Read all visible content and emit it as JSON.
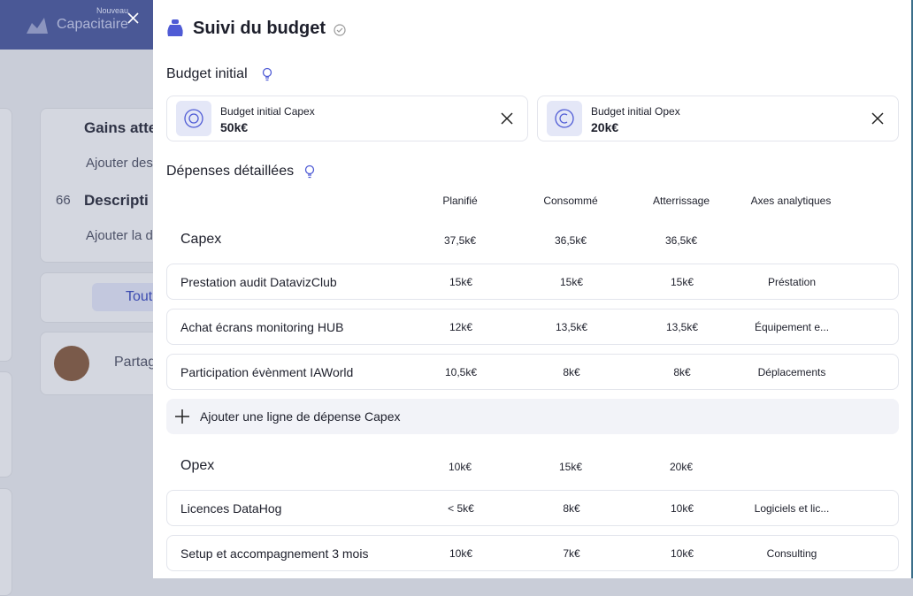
{
  "background": {
    "badge": "Nouveau",
    "app_name": "Capacitaire",
    "texts": [
      "Gains atte",
      "Ajouter des",
      "66",
      "Descripti",
      "Ajouter la d",
      "Tout",
      "Partag"
    ]
  },
  "panel": {
    "title": "Suivi du budget",
    "initial_budget": {
      "heading": "Budget initial",
      "cards": [
        {
          "label": "Budget initial Capex",
          "amount": "50k€"
        },
        {
          "label": "Budget initial Opex",
          "amount": "20k€"
        }
      ]
    },
    "details": {
      "heading": "Dépenses détaillées",
      "columns": [
        "Planifié",
        "Consommé",
        "Atterrissage",
        "Axes analytiques"
      ],
      "groups": [
        {
          "name": "Capex",
          "totals": [
            "37,5k€",
            "36,5k€",
            "36,5k€"
          ],
          "rows": [
            [
              "Prestation audit DatavizClub",
              "15k€",
              "15k€",
              "15k€",
              "Préstation"
            ],
            [
              "Achat écrans monitoring HUB",
              "12k€",
              "13,5k€",
              "13,5k€",
              "Équipement e..."
            ],
            [
              "Participation évènment IAWorld",
              "10,5k€",
              "8k€",
              "8k€",
              "Déplacements"
            ]
          ],
          "add_label": "Ajouter une ligne de dépense Capex"
        },
        {
          "name": "Opex",
          "totals": [
            "10k€",
            "15k€",
            "20k€"
          ],
          "rows": [
            [
              "Licences DataHog",
              "< 5k€",
              "8k€",
              "10k€",
              "Logiciels et lic..."
            ],
            [
              "Setup et accompagnement 3 mois",
              "10k€",
              "7k€",
              "10k€",
              "Consulting"
            ]
          ]
        }
      ]
    }
  }
}
